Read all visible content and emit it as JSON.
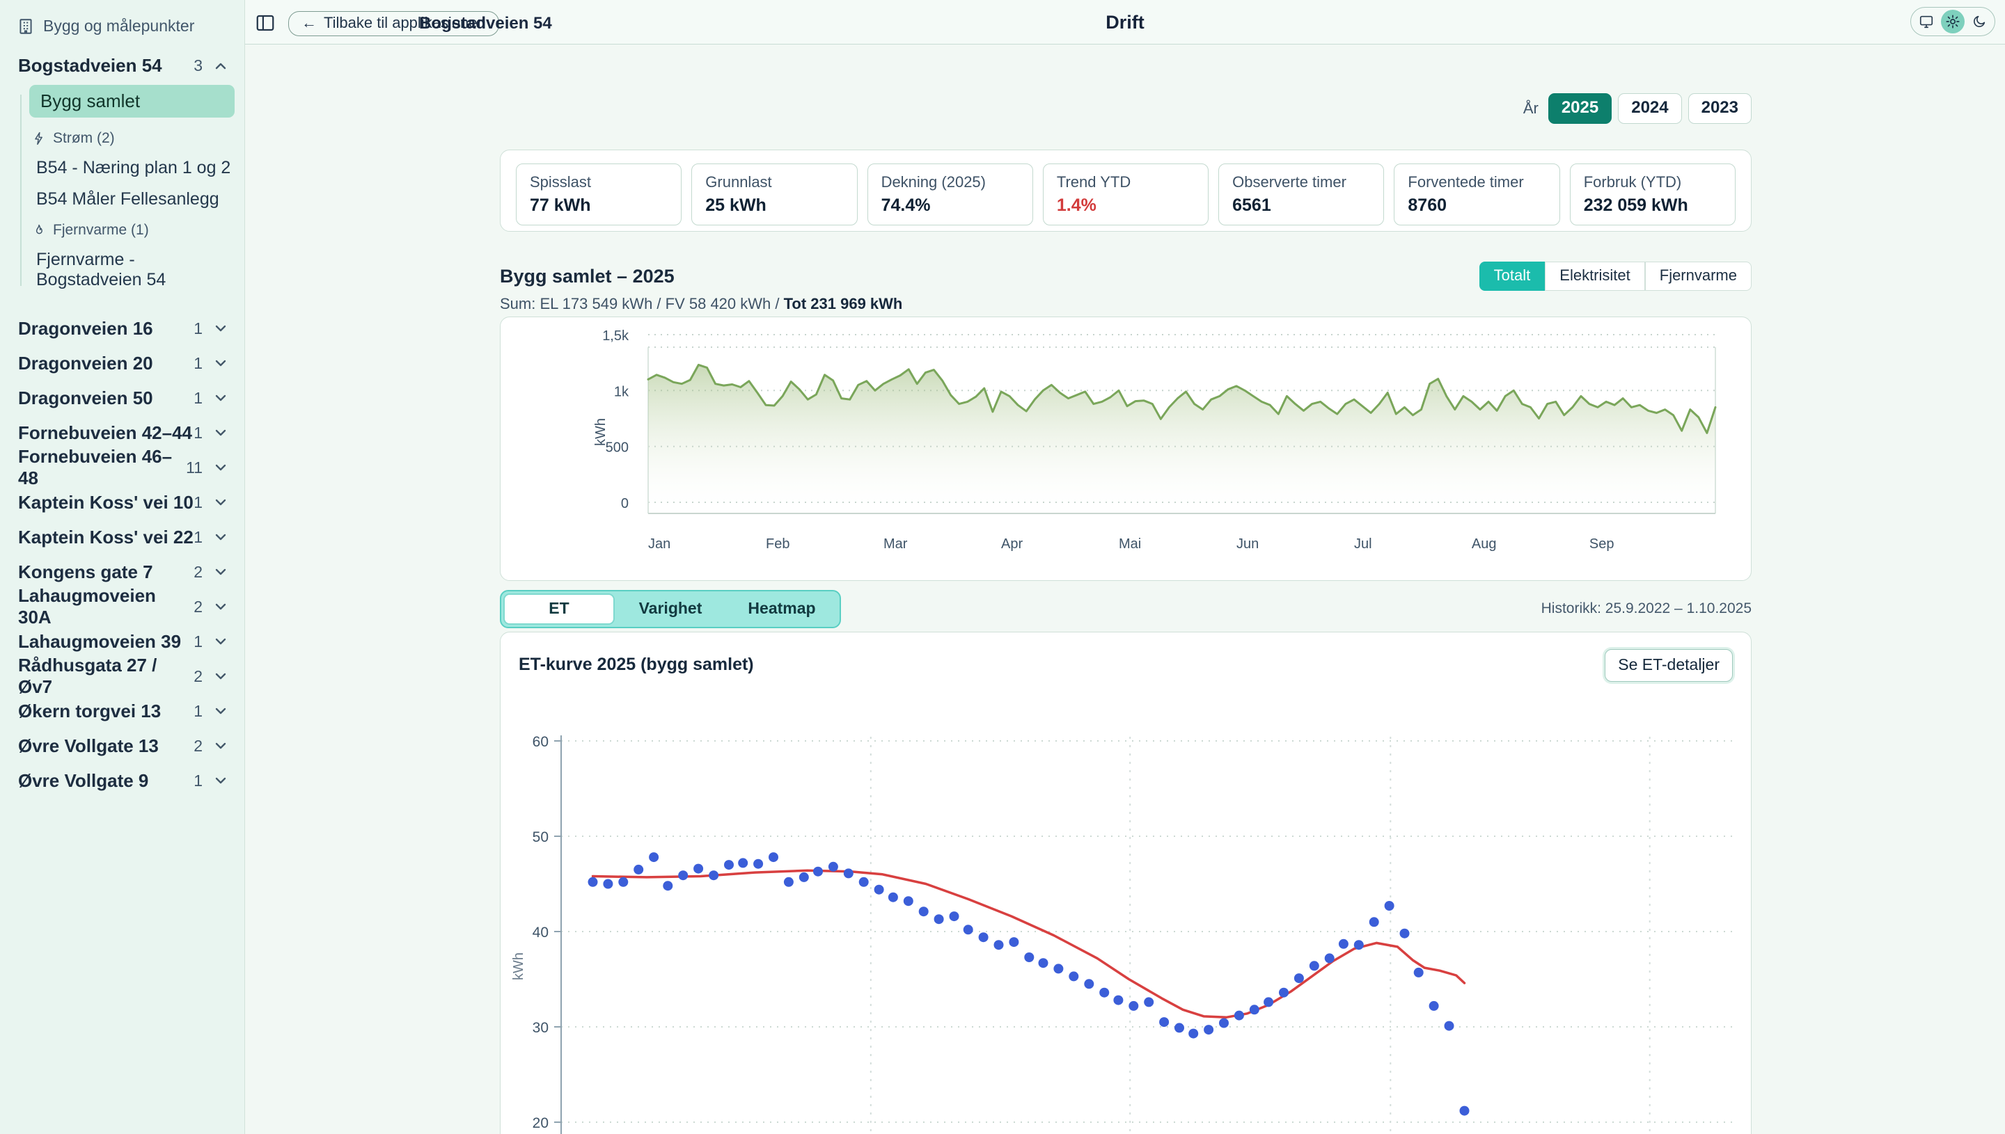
{
  "app": {
    "header_title": "Drift",
    "back_button": "Tilbake til applikasjonen",
    "back_arrow": "←",
    "breadcrumb": "Bogstadveien 54"
  },
  "theme_toggle": {
    "active": "light",
    "options": [
      "system",
      "light",
      "dark"
    ]
  },
  "sidebar": {
    "title": "Bygg og målepunkter",
    "active_group": {
      "name": "Bogstadveien 54",
      "count": "3",
      "summary_item": "Bygg samlet",
      "el_group": "Strøm (2)",
      "el_items": [
        "B54 - Næring plan 1 og 2",
        "B54 Måler Fellesanlegg"
      ],
      "heat_group": "Fjernvarme (1)",
      "heat_items": [
        "Fjernvarme - Bogstadveien 54"
      ]
    },
    "groups": [
      {
        "name": "Dragonveien 16",
        "count": "1"
      },
      {
        "name": "Dragonveien 20",
        "count": "1"
      },
      {
        "name": "Dragonveien 50",
        "count": "1"
      },
      {
        "name": "Fornebuveien 42–44",
        "count": "1"
      },
      {
        "name": "Fornebuveien 46–48",
        "count": "11"
      },
      {
        "name": "Kaptein Koss' vei 10",
        "count": "1"
      },
      {
        "name": "Kaptein Koss' vei 22",
        "count": "1"
      },
      {
        "name": "Kongens gate 7",
        "count": "2"
      },
      {
        "name": "Lahaugmoveien 30A",
        "count": "2"
      },
      {
        "name": "Lahaugmoveien 39",
        "count": "1"
      },
      {
        "name": "Rådhusgata 27 / Øv7",
        "count": "2"
      },
      {
        "name": "Økern torgvei 13",
        "count": "1"
      },
      {
        "name": "Øvre Vollgate 13",
        "count": "2"
      },
      {
        "name": "Øvre Vollgate 9",
        "count": "1"
      }
    ]
  },
  "filters": {
    "year_label": "År",
    "years": [
      {
        "label": "2025",
        "active": true
      },
      {
        "label": "2024",
        "active": false
      },
      {
        "label": "2023",
        "active": false
      }
    ]
  },
  "stats": [
    {
      "label": "Spisslast",
      "value": "77 kWh"
    },
    {
      "label": "Grunnlast",
      "value": "25 kWh"
    },
    {
      "label": "Dekning (2025)",
      "value": "74.4%"
    },
    {
      "label": "Trend YTD",
      "value": "1.4%",
      "value_color": "#d23b3b"
    },
    {
      "label": "Observerte timer",
      "value": "6561"
    },
    {
      "label": "Forventede timer",
      "value": "8760"
    },
    {
      "label": "Forbruk (YTD)",
      "value": "232 059 kWh"
    }
  ],
  "energy_section": {
    "title": "Bygg samlet – 2025",
    "sum_regular": "Sum: EL 173 549 kWh / FV 58 420 kWh / ",
    "sum_bold": "Tot 231 969 kWh",
    "tabs": [
      {
        "label": "Totalt",
        "active": true
      },
      {
        "label": "Elektrisitet",
        "active": false
      },
      {
        "label": "Fjernvarme",
        "active": false
      }
    ]
  },
  "view_tabs": {
    "tabs": [
      {
        "label": "ET",
        "active": true
      },
      {
        "label": "Varighet",
        "active": false
      },
      {
        "label": "Heatmap",
        "active": false
      }
    ],
    "history": "Historikk: 25.9.2022 – 1.10.2025"
  },
  "et_section": {
    "title": "ET-kurve 2025 (bygg samlet)",
    "details_button": "Se ET-detaljer"
  },
  "colors": {
    "accent_teal": "#1bbcac",
    "accent_dark_teal": "#0d7f6c",
    "selected_mint": "#a6dfcc",
    "sidebar_bg": "#e9f5f0",
    "negative_red": "#d23b3b"
  },
  "chart_data": [
    {
      "type": "area",
      "title": "Bygg samlet – 2025",
      "ylabel": "kWh",
      "ylim": [
        0,
        1500
      ],
      "y_ticks": [
        1500,
        1000,
        500,
        0
      ],
      "y_tick_labels": [
        "1,5k",
        "1k",
        "500",
        "0"
      ],
      "x_ticks": [
        "Jan",
        "Feb",
        "Mar",
        "Apr",
        "Mai",
        "Jun",
        "Jul",
        "Aug",
        "Sep"
      ],
      "points_per_month": 14,
      "grid": "dotted",
      "colors": {
        "line": "#7aa65a",
        "fill_top": "rgba(148,181,112,0.50)",
        "fill_bottom": "rgba(244,250,242,0.05)"
      },
      "values": [
        1100,
        1140,
        1115,
        1075,
        1060,
        1095,
        1230,
        1205,
        1060,
        1045,
        1055,
        1030,
        1085,
        980,
        870,
        865,
        950,
        1080,
        1010,
        920,
        965,
        1140,
        1090,
        930,
        920,
        1050,
        1085,
        1000,
        1060,
        1100,
        1135,
        1190,
        1060,
        1160,
        1185,
        1090,
        960,
        880,
        900,
        945,
        1020,
        810,
        990,
        950,
        870,
        815,
        920,
        1000,
        1050,
        980,
        930,
        960,
        990,
        880,
        900,
        940,
        1000,
        860,
        905,
        910,
        880,
        745,
        850,
        930,
        990,
        880,
        830,
        920,
        950,
        1010,
        1040,
        1000,
        950,
        900,
        870,
        790,
        950,
        880,
        820,
        880,
        900,
        840,
        790,
        880,
        920,
        860,
        800,
        880,
        980,
        790,
        850,
        780,
        830,
        1060,
        1105,
        950,
        830,
        950,
        900,
        830,
        900,
        820,
        950,
        1000,
        880,
        850,
        750,
        880,
        900,
        780,
        850,
        950,
        880,
        850,
        900,
        870,
        930,
        850,
        870,
        820,
        800,
        830,
        780,
        640,
        830,
        760,
        620,
        850
      ]
    },
    {
      "type": "scatter",
      "title": "ET-kurve 2025 (bygg samlet)",
      "ylabel": "kWh",
      "ylim": [
        20,
        60
      ],
      "y_ticks": [
        60,
        50,
        40,
        30,
        20
      ],
      "x_grid_fractions": [
        26.4,
        48.5,
        70.7,
        92.8
      ],
      "grid": "dotted",
      "colors": {
        "points": "#3b5ed8",
        "trend": "#d84040"
      },
      "points": [
        [
          2.7,
          45.2
        ],
        [
          4.0,
          45.0
        ],
        [
          5.3,
          45.2
        ],
        [
          6.6,
          46.5
        ],
        [
          7.9,
          47.8
        ],
        [
          9.1,
          44.8
        ],
        [
          10.4,
          45.9
        ],
        [
          11.7,
          46.6
        ],
        [
          13.0,
          45.9
        ],
        [
          14.3,
          47.0
        ],
        [
          15.5,
          47.2
        ],
        [
          16.8,
          47.1
        ],
        [
          18.1,
          47.8
        ],
        [
          19.4,
          45.2
        ],
        [
          20.7,
          45.7
        ],
        [
          21.9,
          46.3
        ],
        [
          23.2,
          46.8
        ],
        [
          24.5,
          46.1
        ],
        [
          25.8,
          45.2
        ],
        [
          27.1,
          44.4
        ],
        [
          28.3,
          43.6
        ],
        [
          29.6,
          43.2
        ],
        [
          30.9,
          42.1
        ],
        [
          32.2,
          41.3
        ],
        [
          33.5,
          41.6
        ],
        [
          34.7,
          40.2
        ],
        [
          36.0,
          39.4
        ],
        [
          37.3,
          38.6
        ],
        [
          38.6,
          38.9
        ],
        [
          39.9,
          37.3
        ],
        [
          41.1,
          36.7
        ],
        [
          42.4,
          36.1
        ],
        [
          43.7,
          35.3
        ],
        [
          45.0,
          34.5
        ],
        [
          46.3,
          33.6
        ],
        [
          47.5,
          32.8
        ],
        [
          48.8,
          32.2
        ],
        [
          50.1,
          32.6
        ],
        [
          51.4,
          30.5
        ],
        [
          52.7,
          29.9
        ],
        [
          53.9,
          29.3
        ],
        [
          55.2,
          29.7
        ],
        [
          56.5,
          30.4
        ],
        [
          57.8,
          31.2
        ],
        [
          59.1,
          31.8
        ],
        [
          60.3,
          32.6
        ],
        [
          61.6,
          33.6
        ],
        [
          62.9,
          35.1
        ],
        [
          64.2,
          36.4
        ],
        [
          65.5,
          37.2
        ],
        [
          66.7,
          38.7
        ],
        [
          68.0,
          38.6
        ],
        [
          69.3,
          41.0
        ],
        [
          70.6,
          42.7
        ],
        [
          71.9,
          39.8
        ],
        [
          73.1,
          35.7
        ],
        [
          74.4,
          32.2
        ],
        [
          75.7,
          30.1
        ],
        [
          77.0,
          21.2
        ]
      ],
      "trend": [
        [
          2.7,
          45.8
        ],
        [
          7.3,
          45.7
        ],
        [
          11.9,
          45.8
        ],
        [
          16.5,
          46.2
        ],
        [
          21.0,
          46.4
        ],
        [
          24.7,
          46.3
        ],
        [
          27.4,
          46.0
        ],
        [
          31.1,
          45.0
        ],
        [
          34.7,
          43.4
        ],
        [
          38.4,
          41.6
        ],
        [
          42.0,
          39.6
        ],
        [
          45.7,
          37.2
        ],
        [
          48.4,
          35.0
        ],
        [
          51.2,
          33.0
        ],
        [
          53.0,
          31.8
        ],
        [
          54.8,
          31.1
        ],
        [
          56.7,
          31.0
        ],
        [
          58.5,
          31.4
        ],
        [
          60.3,
          32.3
        ],
        [
          62.2,
          33.7
        ],
        [
          64.0,
          35.3
        ],
        [
          65.8,
          36.9
        ],
        [
          67.6,
          38.2
        ],
        [
          69.5,
          38.8
        ],
        [
          71.3,
          38.4
        ],
        [
          72.6,
          37.0
        ],
        [
          73.6,
          36.2
        ],
        [
          74.9,
          35.9
        ],
        [
          76.3,
          35.4
        ],
        [
          77.0,
          34.6
        ]
      ]
    }
  ]
}
